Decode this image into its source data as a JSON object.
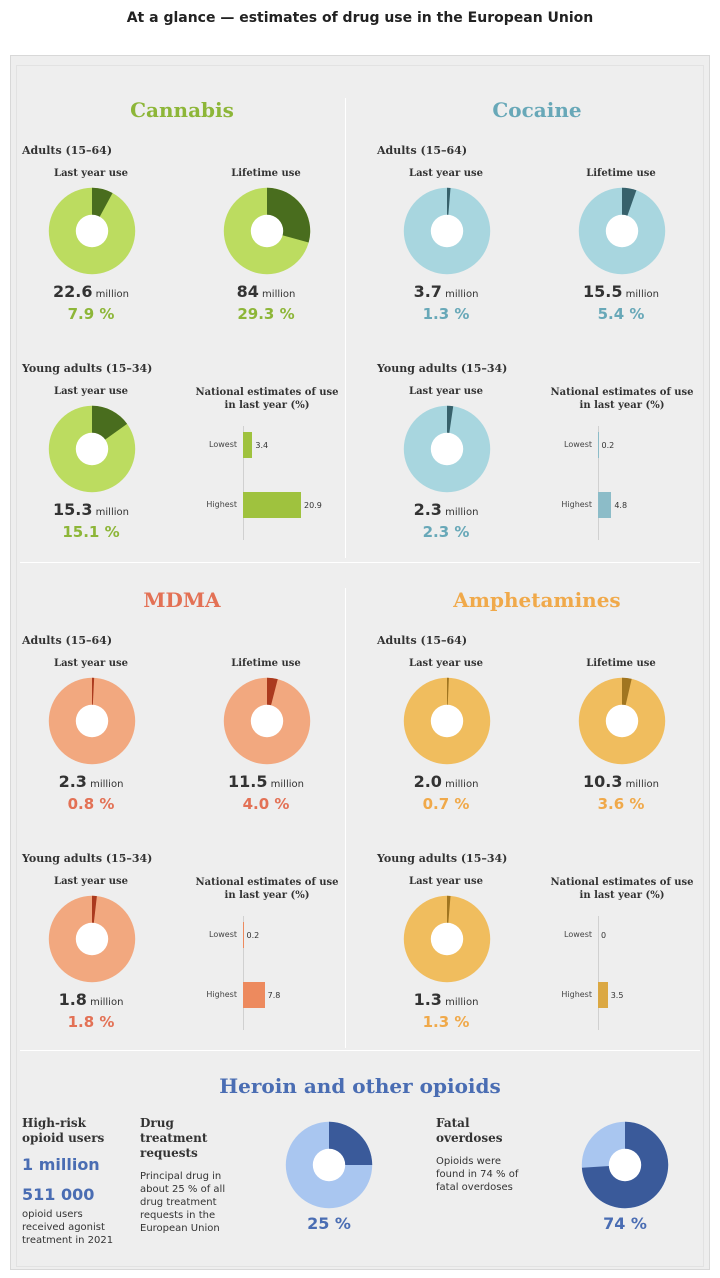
{
  "title": "At a glance — estimates of drug use in the European Union",
  "colors": {
    "cannabis_light": "#bcdc60",
    "cannabis_dark": "#496d1e",
    "cannabis_text": "#8db638",
    "cannabis_bar": "#9fc23e",
    "cocaine_light": "#a8d6df",
    "cocaine_dark": "#37616b",
    "cocaine_text": "#68a8b8",
    "cocaine_bar": "#8cbcc8",
    "mdma_light": "#f2a87f",
    "mdma_dark": "#ab3a1e",
    "mdma_text": "#e37155",
    "mdma_bar": "#ed8a5e",
    "amph_light": "#f0bd5e",
    "amph_dark": "#a07520",
    "amph_text": "#f0a94a",
    "amph_bar": "#dba843",
    "opioid_light": "#a9c6f0",
    "opioid_dark": "#3a5a9a",
    "opioid_text": "#4a6db3"
  },
  "labels": {
    "adults": "Adults (15–64)",
    "young": "Young adults (15–34)",
    "last_year": "Last year use",
    "lifetime": "Lifetime use",
    "national_1": "National estimates of use",
    "national_2": "in last year (%)",
    "lowest": "Lowest",
    "highest": "Highest",
    "million": "million"
  },
  "chart_data": [
    {
      "type": "pie",
      "drug": "Cannabis",
      "group": "Adults (15–64)",
      "measure": "Last year use",
      "count": "22.6",
      "percent_label": "7.9 %",
      "percent": 7.9
    },
    {
      "type": "pie",
      "drug": "Cannabis",
      "group": "Adults (15–64)",
      "measure": "Lifetime use",
      "count": "84",
      "percent_label": "29.3 %",
      "percent": 29.3
    },
    {
      "type": "pie",
      "drug": "Cannabis",
      "group": "Young adults (15–34)",
      "measure": "Last year use",
      "count": "15.3",
      "percent_label": "15.1 %",
      "percent": 15.1
    },
    {
      "type": "bar",
      "drug": "Cannabis",
      "title": "National estimates of use in last year (%)",
      "categories": [
        "Lowest",
        "Highest"
      ],
      "values": [
        3.4,
        20.9
      ]
    },
    {
      "type": "pie",
      "drug": "Cocaine",
      "group": "Adults (15–64)",
      "measure": "Last year use",
      "count": "3.7",
      "percent_label": "1.3 %",
      "percent": 1.3
    },
    {
      "type": "pie",
      "drug": "Cocaine",
      "group": "Adults (15–64)",
      "measure": "Lifetime use",
      "count": "15.5",
      "percent_label": "5.4 %",
      "percent": 5.4
    },
    {
      "type": "pie",
      "drug": "Cocaine",
      "group": "Young adults (15–34)",
      "measure": "Last year use",
      "count": "2.3",
      "percent_label": "2.3 %",
      "percent": 2.3
    },
    {
      "type": "bar",
      "drug": "Cocaine",
      "title": "National estimates of use in last year (%)",
      "categories": [
        "Lowest",
        "Highest"
      ],
      "values": [
        0.2,
        4.8
      ]
    },
    {
      "type": "pie",
      "drug": "MDMA",
      "group": "Adults (15–64)",
      "measure": "Last year use",
      "count": "2.3",
      "percent_label": "0.8 %",
      "percent": 0.8
    },
    {
      "type": "pie",
      "drug": "MDMA",
      "group": "Adults (15–64)",
      "measure": "Lifetime use",
      "count": "11.5",
      "percent_label": "4.0 %",
      "percent": 4.0
    },
    {
      "type": "pie",
      "drug": "MDMA",
      "group": "Young adults (15–34)",
      "measure": "Last year use",
      "count": "1.8",
      "percent_label": "1.8 %",
      "percent": 1.8
    },
    {
      "type": "bar",
      "drug": "MDMA",
      "title": "National estimates of use in last year (%)",
      "categories": [
        "Lowest",
        "Highest"
      ],
      "values": [
        0.2,
        7.8
      ]
    },
    {
      "type": "pie",
      "drug": "Amphetamines",
      "group": "Adults (15–64)",
      "measure": "Last year use",
      "count": "2.0",
      "percent_label": "0.7 %",
      "percent": 0.7
    },
    {
      "type": "pie",
      "drug": "Amphetamines",
      "group": "Adults (15–64)",
      "measure": "Lifetime use",
      "count": "10.3",
      "percent_label": "3.6 %",
      "percent": 3.6
    },
    {
      "type": "pie",
      "drug": "Amphetamines",
      "group": "Young adults (15–34)",
      "measure": "Last year use",
      "count": "1.3",
      "percent_label": "1.3 %",
      "percent": 1.3
    },
    {
      "type": "bar",
      "drug": "Amphetamines",
      "title": "National estimates of use in last year (%)",
      "categories": [
        "Lowest",
        "Highest"
      ],
      "values": [
        0,
        3.5
      ]
    },
    {
      "type": "pie",
      "drug": "Heroin and other opioids",
      "measure": "Drug treatment requests",
      "percent_label": "25 %",
      "percent": 25
    },
    {
      "type": "pie",
      "drug": "Heroin and other opioids",
      "measure": "Fatal overdoses",
      "percent_label": "74 %",
      "percent": 74
    }
  ],
  "opioids": {
    "title": "Heroin and other opioids",
    "users_head_1": "High-risk",
    "users_head_2": "opioid users",
    "users_value": "1 million",
    "agonist_value": "511 000",
    "agonist_1": "opioid users",
    "agonist_2": "received agonist",
    "agonist_3": "treatment in 2021",
    "treat_head_1": "Drug",
    "treat_head_2": "treatment",
    "treat_head_3": "requests",
    "treat_1": "Principal drug in",
    "treat_2": "about 25 % of all",
    "treat_3": "drug treatment",
    "treat_4": "requests in the",
    "treat_5": "European Union",
    "fatal_head_1": "Fatal",
    "fatal_head_2": "overdoses",
    "fatal_1": "Opioids were",
    "fatal_2": "found in 74 % of",
    "fatal_3": "fatal overdoses"
  }
}
